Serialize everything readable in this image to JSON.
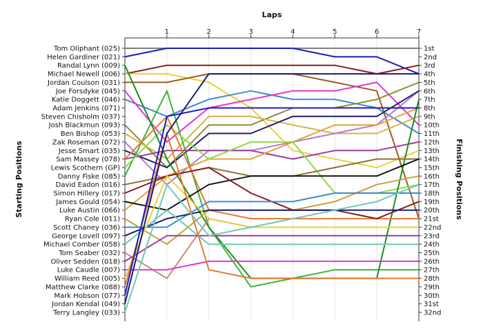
{
  "chart_data": {
    "type": "line",
    "title": "",
    "xlabel": "Laps",
    "ylabel_left": "Starting Positions",
    "ylabel_right": "Finishing Positions",
    "x": [
      0,
      1,
      2,
      3,
      4,
      5,
      6,
      7
    ],
    "x_tick_labels": [
      "1",
      "2",
      "3",
      "4",
      "5",
      "6",
      "7"
    ],
    "xlim": [
      0,
      7
    ],
    "ylim": [
      1,
      32
    ],
    "y_inverted": true,
    "grid": true,
    "starting_grid": [
      "Tom Oliphant (025)",
      "Helen Gardiner (021)",
      "Randal Lynn (009)",
      "Michael Newell (006)",
      "Jordan Coulson (031)",
      "Joe Forsdyke (045)",
      "Katie Doggett (046)",
      "Adam Jenkins (071)",
      "Steven Chisholm (037)",
      "Josh Blackmun (093)",
      "Ben Bishop (053)",
      "Zak Roseman (072)",
      "Jesse Smart (035)",
      "Sam Massey (078)",
      "Lewis Scothern (GP)",
      "Danny Fiske (085)",
      "David Eadon (016)",
      "Simon Hillery (017)",
      "James Gould (054)",
      "Luke Austin (066)",
      "Ryan Cole (011)",
      "Scott Chaney (036)",
      "George Lovell (097)",
      "Michael Comber (058)",
      "Tom Seaber (032)",
      "Oliver Sedden (018)",
      "Luke Caudle (007)",
      "William Reed (005)",
      "Matthew Clarke (088)",
      "Mark Hobson (077)",
      "Jordan Kendal (049)",
      "Terry Langley (033)"
    ],
    "finishing_labels": [
      "1st",
      "2nd",
      "3rd",
      "4th",
      "5th",
      "6th",
      "7th",
      "8th",
      "9th",
      "10th",
      "11th",
      "12th",
      "13th",
      "14th",
      "15th",
      "16th",
      "17th",
      "18th",
      "19th",
      "20th",
      "21st",
      "22nd",
      "23rd",
      "24th",
      "25th",
      "26th",
      "27th",
      "28th",
      "29th",
      "30th",
      "31st",
      "32nd"
    ],
    "series": [
      {
        "color": "#808080",
        "values": [
          1,
          1,
          1,
          1,
          1,
          1,
          1,
          1
        ]
      },
      {
        "color": "#1c1cbf",
        "values": [
          2,
          1,
          1,
          1,
          1,
          2,
          2,
          4
        ]
      },
      {
        "color": "#8c1c1c",
        "values": [
          4,
          3,
          3,
          3,
          3,
          3,
          4,
          3
        ]
      },
      {
        "color": "#e6d23c",
        "values": [
          4,
          4,
          5,
          8,
          13,
          14,
          15,
          13
        ]
      },
      {
        "color": "#a05a1e",
        "values": [
          5,
          5,
          4,
          4,
          4,
          5,
          6,
          21
        ]
      },
      {
        "color": "#3c8cd2",
        "values": [
          7,
          9,
          7,
          6,
          7,
          7,
          8,
          11
        ]
      },
      {
        "color": "#e632d2",
        "values": [
          6,
          12,
          8,
          7,
          6,
          6,
          5,
          10
        ]
      },
      {
        "color": "#8c8c3c",
        "values": [
          10,
          15,
          10,
          10,
          8,
          8,
          7,
          5
        ]
      },
      {
        "color": "#d2b446",
        "values": [
          11,
          14,
          9,
          9,
          10,
          11,
          11,
          9
        ]
      },
      {
        "color": "#b47ad2",
        "values": [
          12,
          17,
          13,
          13,
          12,
          11,
          10,
          6
        ]
      },
      {
        "color": "#1c1c6e",
        "values": [
          13,
          15,
          11,
          11,
          9,
          9,
          9,
          6
        ]
      },
      {
        "color": "#3cb43c",
        "values": [
          16,
          6,
          22,
          29,
          28,
          27,
          27,
          27
        ]
      },
      {
        "color": "#9c3c9c",
        "values": [
          14,
          13,
          13,
          13,
          14,
          13,
          13,
          12
        ]
      },
      {
        "color": "#e6a03c",
        "values": [
          20,
          16,
          14,
          14,
          12,
          10,
          10,
          8
        ]
      },
      {
        "color": "#8cdc3c",
        "values": [
          15,
          10,
          14,
          12,
          12,
          18,
          18,
          17
        ]
      },
      {
        "color": "#1e8c1e",
        "values": [
          3,
          14,
          22,
          28,
          28,
          28,
          28,
          7
        ]
      },
      {
        "color": "#8c6e3c",
        "values": [
          17,
          16,
          15,
          16,
          16,
          15,
          14,
          14
        ]
      },
      {
        "color": "#e67832",
        "values": [
          14,
          9,
          20,
          21,
          21,
          21,
          21,
          21
        ]
      },
      {
        "color": "#141414",
        "values": [
          19,
          20,
          17,
          16,
          16,
          16,
          16,
          14
        ]
      },
      {
        "color": "#8c1c1c",
        "values": [
          18,
          16,
          15,
          18,
          20,
          20,
          21,
          19
        ]
      },
      {
        "color": "#c8a03c",
        "values": [
          21,
          24,
          20,
          20,
          20,
          19,
          17,
          16
        ]
      },
      {
        "color": "#3c8cd2",
        "values": [
          22,
          22,
          19,
          19,
          19,
          18,
          18,
          18
        ]
      },
      {
        "color": "#1c1c6e",
        "values": [
          23,
          21,
          20,
          20,
          20,
          20,
          20,
          20
        ]
      },
      {
        "color": "#6ec8b4",
        "values": [
          24,
          20,
          24,
          24,
          24,
          24,
          24,
          24
        ]
      },
      {
        "color": "#c88c6e",
        "values": [
          25,
          28,
          21,
          22,
          22,
          22,
          22,
          22
        ]
      },
      {
        "color": "#9c3c9c",
        "values": [
          26,
          23,
          23,
          23,
          23,
          23,
          23,
          23
        ]
      },
      {
        "color": "#e632d2",
        "values": [
          27,
          27,
          26,
          26,
          26,
          26,
          26,
          26
        ]
      },
      {
        "color": "#e6d23c",
        "values": [
          28,
          16,
          21,
          22,
          22,
          22,
          22,
          22
        ]
      },
      {
        "color": "#e67832",
        "values": [
          29,
          11,
          27,
          28,
          28,
          28,
          28,
          28
        ]
      },
      {
        "color": "#1c1cbf",
        "values": [
          30,
          9,
          8,
          8,
          8,
          8,
          8,
          8
        ]
      },
      {
        "color": "#1c1c6e",
        "values": [
          31,
          11,
          4,
          4,
          4,
          4,
          4,
          4
        ]
      },
      {
        "color": "#6ec8b4",
        "values": [
          32,
          17,
          23,
          22,
          21,
          20,
          19,
          17
        ]
      }
    ]
  }
}
